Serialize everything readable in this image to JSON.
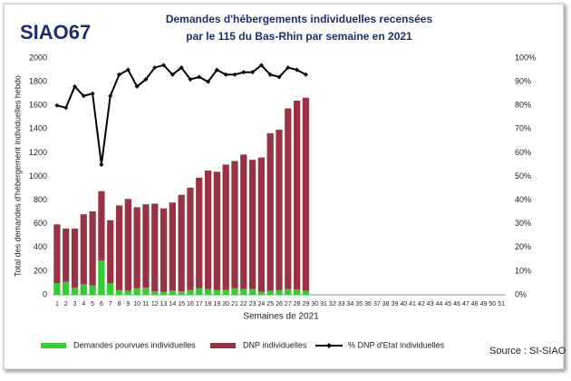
{
  "logo": "SIAO67",
  "chart_data": {
    "type": "bar",
    "title": [
      "Demandes d'hébergements individuelles recensées",
      "par le 115 du Bas-Rhin par semaine en 2021"
    ],
    "y_label": "Total des demandes d'hébergement individuelles hebdo",
    "x_label": "Semaines de 2021",
    "source": "Source : SI-SIAO",
    "stacked": true,
    "categories": [
      1,
      2,
      3,
      4,
      5,
      6,
      7,
      8,
      9,
      10,
      11,
      12,
      13,
      14,
      15,
      16,
      17,
      18,
      19,
      20,
      21,
      22,
      23,
      24,
      25,
      26,
      27,
      28,
      29,
      30,
      31,
      32,
      33,
      34,
      35,
      36,
      37,
      38,
      39,
      40,
      41,
      42,
      43,
      44,
      45,
      46,
      47,
      48,
      49,
      50,
      51
    ],
    "series": [
      {
        "name": "Demandes pourvues individuelles",
        "color": "#33cc33",
        "values": [
          100,
          110,
          60,
          90,
          80,
          290,
          100,
          40,
          35,
          55,
          60,
          30,
          25,
          35,
          30,
          40,
          55,
          50,
          40,
          40,
          55,
          50,
          50,
          25,
          35,
          40,
          50,
          45,
          35,
          null,
          null,
          null,
          null,
          null,
          null,
          null,
          null,
          null,
          null,
          null,
          null,
          null,
          null,
          null,
          null,
          null,
          null,
          null,
          null,
          null,
          null
        ]
      },
      {
        "name": "DNP individuelles",
        "color": "#993344",
        "values": [
          495,
          450,
          500,
          590,
          625,
          585,
          530,
          715,
          775,
          685,
          705,
          740,
          705,
          745,
          815,
          865,
          935,
          1000,
          1000,
          1060,
          1075,
          1135,
          1090,
          1135,
          1330,
          1355,
          1525,
          1595,
          1630,
          null,
          null,
          null,
          null,
          null,
          null,
          null,
          null,
          null,
          null,
          null,
          null,
          null,
          null,
          null,
          null,
          null,
          null,
          null,
          null,
          null,
          null
        ]
      },
      {
        "name": "% DNP d'Etat individuelles",
        "color": "#000000",
        "axis": "y2",
        "type": "line",
        "values": [
          80,
          79,
          88,
          84,
          85,
          55,
          84,
          93,
          95,
          88,
          91,
          96,
          97,
          93,
          96,
          91,
          92,
          90,
          95,
          93,
          93,
          94,
          94,
          97,
          93,
          92,
          96,
          95,
          93,
          null,
          null,
          null,
          null,
          null,
          null,
          null,
          null,
          null,
          null,
          null,
          null,
          null,
          null,
          null,
          null,
          null,
          null,
          null,
          null,
          null,
          null
        ]
      }
    ],
    "ylim": [
      0,
      2000
    ],
    "yticks": [
      0,
      200,
      400,
      600,
      800,
      1000,
      1200,
      1400,
      1600,
      1800,
      2000
    ],
    "y2lim": [
      0,
      100
    ],
    "y2ticks": [
      {
        "value": 0,
        "label": "0%"
      },
      {
        "value": 10,
        "label": "10%"
      },
      {
        "value": 20,
        "label": "20%"
      },
      {
        "value": 30,
        "label": "30%"
      },
      {
        "value": 40,
        "label": "40%"
      },
      {
        "value": 50,
        "label": "50%"
      },
      {
        "value": 60,
        "label": "60%"
      },
      {
        "value": 70,
        "label": "70%"
      },
      {
        "value": 80,
        "label": "80%"
      },
      {
        "value": 90,
        "label": "90%"
      },
      {
        "value": 100,
        "label": "100%"
      }
    ]
  }
}
